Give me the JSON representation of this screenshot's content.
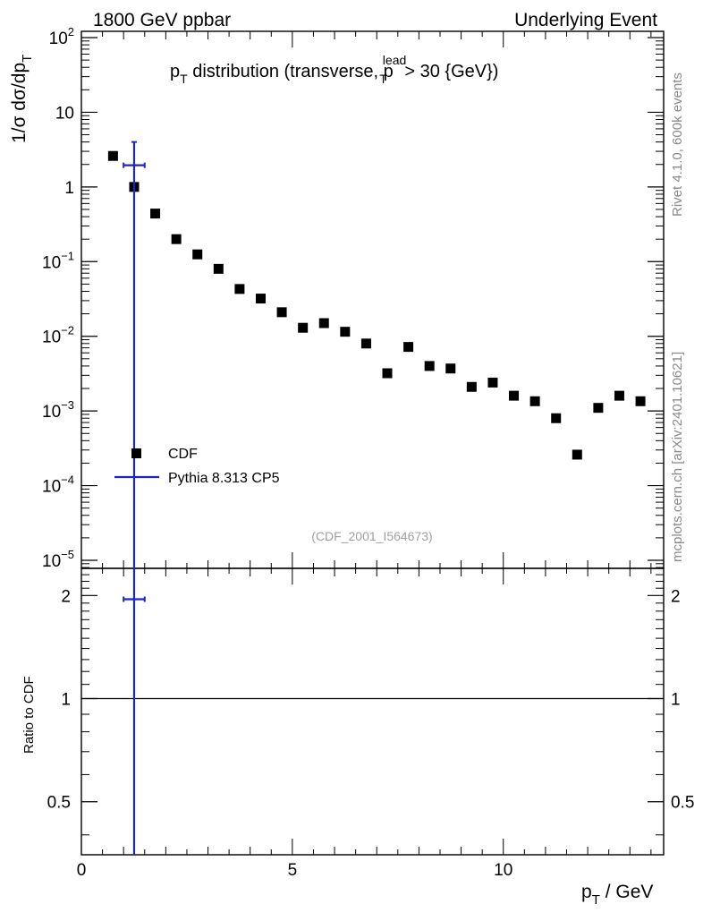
{
  "header": {
    "left": "1800 GeV ppbar",
    "right": "Underlying Event"
  },
  "side_labels": {
    "rivet": "Rivet 4.1.0,  600k events",
    "mcplots": "mcplots.cern.ch [arXiv:2401.10621]"
  },
  "chart_data": [
    {
      "type": "scatter",
      "title": {
        "main": "p",
        "main_sub": "T",
        "rest": " distribution (transverse, p",
        "sup": "lead",
        "sub": "T",
        "tail": " > 30 {GeV})"
      },
      "ylabel": {
        "prefix": "1/σ  dσ/dp",
        "sub": "T"
      },
      "yscale": "log",
      "ylim": [
        1e-05,
        100
      ],
      "xlim": [
        0,
        13.8
      ],
      "ytick_labels": [
        {
          "base": "10",
          "exp": "−5",
          "value": 1e-05
        },
        {
          "base": "10",
          "exp": "−4",
          "value": 0.0001
        },
        {
          "base": "10",
          "exp": "−3",
          "value": 0.001
        },
        {
          "base": "10",
          "exp": "−2",
          "value": 0.01
        },
        {
          "base": "10",
          "exp": "−1",
          "value": 0.1
        },
        {
          "base": "1",
          "exp": "",
          "value": 1
        },
        {
          "base": "10",
          "exp": "",
          "value": 10
        },
        {
          "base": "10",
          "exp": "2",
          "value": 100
        }
      ],
      "watermark": "(CDF_2001_I564673)",
      "legend": {
        "position": "bottom-left",
        "entries": [
          {
            "label": "CDF",
            "marker": "square",
            "color": "#000000"
          },
          {
            "label": "Pythia 8.313 CP5",
            "marker": "line",
            "color": "#1c24c8"
          }
        ]
      },
      "series": [
        {
          "name": "CDF",
          "x": [
            0.75,
            1.25,
            1.75,
            2.25,
            2.75,
            3.25,
            3.75,
            4.25,
            4.75,
            5.25,
            5.75,
            6.25,
            6.75,
            7.25,
            7.75,
            8.25,
            8.75,
            9.25,
            9.75,
            10.25,
            10.75,
            11.25,
            11.75,
            12.25,
            12.75,
            13.25
          ],
          "y": [
            2.6,
            1.0,
            0.44,
            0.2,
            0.125,
            0.08,
            0.043,
            0.032,
            0.021,
            0.013,
            0.015,
            0.0115,
            0.008,
            0.0032,
            0.0072,
            0.004,
            0.0037,
            0.0021,
            0.0024,
            0.0016,
            0.00135,
            0.0008,
            0.00026,
            0.0011,
            0.0016,
            0.00135
          ]
        },
        {
          "name": "Pythia 8.313 CP5",
          "x": [
            1.25
          ],
          "y": [
            1.95
          ],
          "xerr": [
            0.25
          ],
          "y_low": [
            1e-05
          ],
          "y_high": [
            4.0
          ]
        }
      ]
    },
    {
      "type": "scatter",
      "ylabel": "Ratio to CDF",
      "xlabel": {
        "prefix": "p",
        "sub": "T",
        "suffix": " / GeV"
      },
      "xlim": [
        0,
        13.8
      ],
      "ylim": [
        0.35,
        2.4
      ],
      "yscale": "log",
      "xtick_labels": [
        "0",
        "5",
        "10"
      ],
      "xtick_values": [
        0,
        5,
        10
      ],
      "ytick_labels": [
        "0.5",
        "1",
        "2"
      ],
      "ytick_values": [
        0.5,
        1,
        2
      ],
      "reference_line": 1,
      "series": [
        {
          "name": "Pythia 8.313 CP5",
          "x": [
            1.25
          ],
          "y": [
            1.95
          ],
          "xerr": [
            0.25
          ],
          "y_low": [
            0.35
          ],
          "y_high": [
            2.4
          ]
        }
      ]
    }
  ]
}
